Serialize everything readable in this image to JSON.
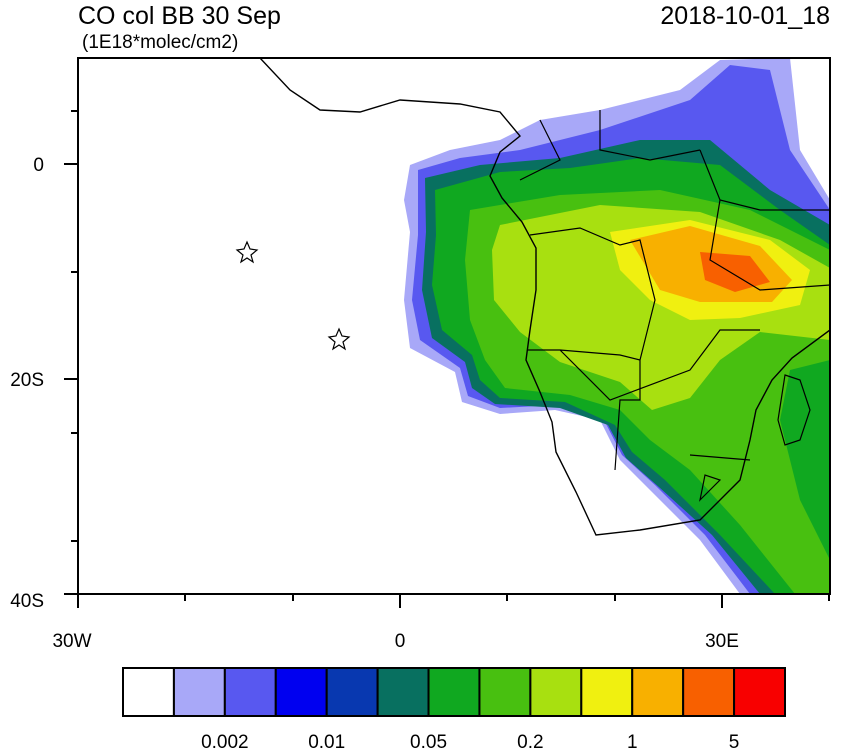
{
  "header": {
    "title": "CO col BB 30 Sep",
    "units": "(1E18*molec/cm2)",
    "date": "2018-10-01_18"
  },
  "map": {
    "lat_labels": [
      "0",
      "20S",
      "40S"
    ],
    "lon_labels": [
      "30W",
      "0",
      "30E"
    ]
  },
  "colorbar": {
    "colors": [
      "#ffffff",
      "#a8a8f8",
      "#5858f0",
      "#0000f0",
      "#0838b0",
      "#087060",
      "#10a820",
      "#48c010",
      "#a8e010",
      "#f0f010",
      "#f8b000",
      "#f86000",
      "#f80000"
    ],
    "labels": [
      "0.002",
      "0.01",
      "0.05",
      "0.2",
      "1",
      "5"
    ]
  }
}
